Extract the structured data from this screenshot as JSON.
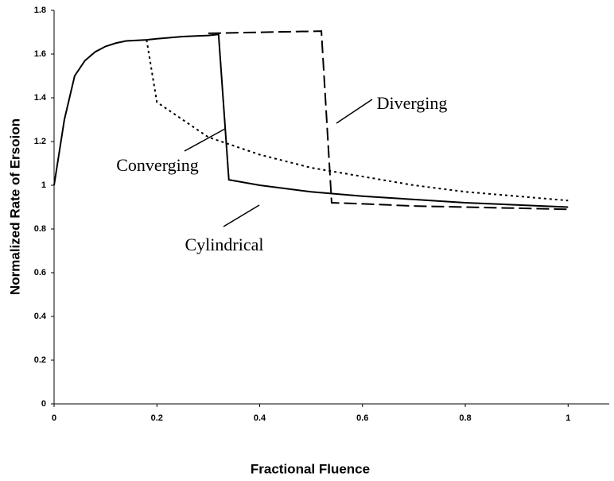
{
  "chart_data": {
    "type": "line",
    "xlabel": "Fractional Fluence",
    "ylabel": "Normalized Rate of Ersoion",
    "xlim": [
      0,
      1.08
    ],
    "xticks": [
      0,
      0.2,
      0.4,
      0.6,
      0.8,
      1
    ],
    "ylim": [
      0,
      1.8
    ],
    "yticks": [
      0,
      0.2,
      0.4,
      0.6,
      0.8,
      1,
      1.2,
      1.4,
      1.6,
      1.8
    ],
    "grid": false,
    "series": [
      {
        "name": "Cylindrical",
        "color": "#000000",
        "style": "solid",
        "x": [
          0,
          0.02,
          0.04,
          0.06,
          0.08,
          0.1,
          0.12,
          0.14,
          0.18,
          0.2,
          0.25,
          0.3,
          0.32,
          0.34,
          0.4,
          0.5,
          0.6,
          0.7,
          0.8,
          0.9,
          1.0
        ],
        "values": [
          1,
          1.3,
          1.5,
          1.57,
          1.61,
          1.635,
          1.65,
          1.66,
          1.665,
          1.67,
          1.68,
          1.685,
          1.69,
          1.025,
          1.0,
          0.97,
          0.95,
          0.935,
          0.92,
          0.91,
          0.9
        ]
      },
      {
        "name": "Converging",
        "color": "#000000",
        "style": "dotted",
        "x": [
          0.18,
          0.2,
          0.3,
          0.4,
          0.5,
          0.6,
          0.7,
          0.8,
          0.9,
          1.0
        ],
        "values": [
          1.665,
          1.38,
          1.22,
          1.14,
          1.08,
          1.04,
          1.0,
          0.97,
          0.95,
          0.93
        ]
      },
      {
        "name": "Diverging",
        "color": "#000000",
        "style": "dashed",
        "x": [
          0.3,
          0.52,
          0.54,
          0.6,
          0.7,
          0.8,
          0.9,
          1.0
        ],
        "values": [
          1.695,
          1.705,
          0.92,
          0.915,
          0.905,
          0.9,
          0.895,
          0.89
        ]
      }
    ]
  }
}
